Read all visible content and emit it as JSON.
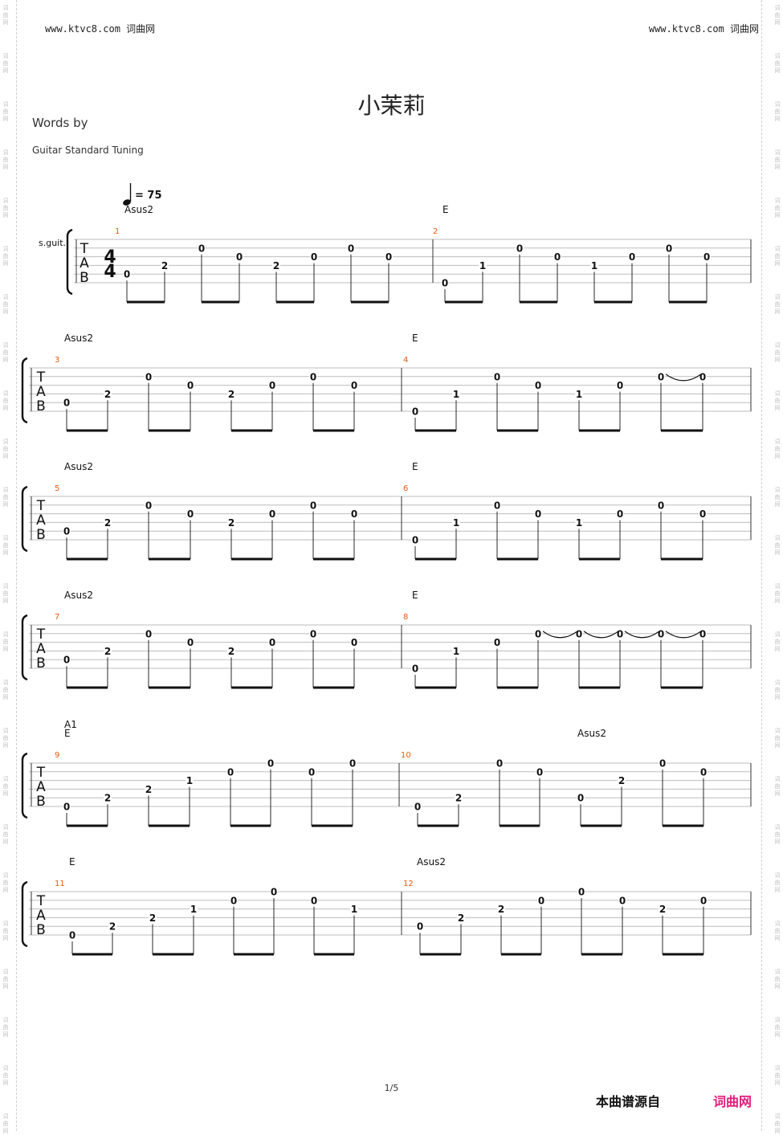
{
  "header": {
    "left": "www.ktvc8.com 词曲网",
    "right": "www.ktvc8.com 词曲网"
  },
  "watermark": {
    "chars": [
      "词",
      "曲",
      "网"
    ]
  },
  "title": "小茉莉",
  "words": "Words by",
  "tuning": "Guitar Standard Tuning",
  "tempo": {
    "icon": "quarter-note-icon",
    "text": "= 75"
  },
  "instrument": "s.guit.",
  "time_signature": {
    "top": "4",
    "bottom": "4"
  },
  "tab_letters": [
    "T",
    "A",
    "B"
  ],
  "section_label": "A1",
  "colors": {
    "measure_number": "#e8590c",
    "brand": "#e21d7a",
    "staff_line": "#bdbdbd"
  },
  "measures": [
    {
      "number": "1",
      "chords": [
        "Asus2"
      ],
      "notes": [
        [
          5,
          "0"
        ],
        [
          4,
          "2"
        ],
        [
          2,
          "0"
        ],
        [
          3,
          "0"
        ],
        [
          4,
          "2"
        ],
        [
          3,
          "0"
        ],
        [
          2,
          "0"
        ],
        [
          3,
          "0"
        ]
      ]
    },
    {
      "number": "2",
      "chords": [
        "E"
      ],
      "notes": [
        [
          6,
          "0"
        ],
        [
          4,
          "1"
        ],
        [
          2,
          "0"
        ],
        [
          3,
          "0"
        ],
        [
          4,
          "1"
        ],
        [
          3,
          "0"
        ],
        [
          2,
          "0"
        ],
        [
          3,
          "0"
        ]
      ]
    },
    {
      "number": "3",
      "chords": [
        "Asus2"
      ],
      "notes": [
        [
          5,
          "0"
        ],
        [
          4,
          "2"
        ],
        [
          2,
          "0"
        ],
        [
          3,
          "0"
        ],
        [
          4,
          "2"
        ],
        [
          3,
          "0"
        ],
        [
          2,
          "0"
        ],
        [
          3,
          "0"
        ]
      ]
    },
    {
      "number": "4",
      "chords": [
        "E"
      ],
      "notes": [
        [
          6,
          "0"
        ],
        [
          4,
          "1"
        ],
        [
          2,
          "0"
        ],
        [
          3,
          "0"
        ],
        [
          4,
          "1"
        ],
        [
          3,
          "0"
        ],
        [
          2,
          "0"
        ],
        [
          2,
          "0"
        ]
      ],
      "ties": [
        [
          6,
          7
        ]
      ]
    },
    {
      "number": "5",
      "chords": [
        "Asus2"
      ],
      "notes": [
        [
          5,
          "0"
        ],
        [
          4,
          "2"
        ],
        [
          2,
          "0"
        ],
        [
          3,
          "0"
        ],
        [
          4,
          "2"
        ],
        [
          3,
          "0"
        ],
        [
          2,
          "0"
        ],
        [
          3,
          "0"
        ]
      ]
    },
    {
      "number": "6",
      "chords": [
        "E"
      ],
      "notes": [
        [
          6,
          "0"
        ],
        [
          4,
          "1"
        ],
        [
          2,
          "0"
        ],
        [
          3,
          "0"
        ],
        [
          4,
          "1"
        ],
        [
          3,
          "0"
        ],
        [
          2,
          "0"
        ],
        [
          3,
          "0"
        ]
      ]
    },
    {
      "number": "7",
      "chords": [
        "Asus2"
      ],
      "notes": [
        [
          5,
          "0"
        ],
        [
          4,
          "2"
        ],
        [
          2,
          "0"
        ],
        [
          3,
          "0"
        ],
        [
          4,
          "2"
        ],
        [
          3,
          "0"
        ],
        [
          2,
          "0"
        ],
        [
          3,
          "0"
        ]
      ]
    },
    {
      "number": "8",
      "chords": [
        "E"
      ],
      "notes": [
        [
          6,
          "0"
        ],
        [
          4,
          "1"
        ],
        [
          3,
          "0"
        ],
        [
          2,
          "0"
        ],
        [
          2,
          "0"
        ],
        [
          2,
          "0"
        ],
        [
          2,
          "0"
        ],
        [
          2,
          "0"
        ]
      ],
      "ties": [
        [
          3,
          4
        ],
        [
          4,
          5
        ],
        [
          5,
          6
        ],
        [
          6,
          7
        ]
      ]
    },
    {
      "number": "9",
      "chords": [
        "E"
      ],
      "notes": [
        [
          6,
          "0"
        ],
        [
          5,
          "2"
        ],
        [
          4,
          "2"
        ],
        [
          3,
          "1"
        ],
        [
          2,
          "0"
        ],
        [
          1,
          "0"
        ],
        [
          2,
          "0"
        ],
        [
          1,
          "0"
        ]
      ]
    },
    {
      "number": "10",
      "chords": [
        "Asus2"
      ],
      "notes": [
        [
          6,
          "0"
        ],
        [
          5,
          "2"
        ],
        [
          1,
          "0"
        ],
        [
          2,
          "0"
        ],
        [
          5,
          "0"
        ],
        [
          3,
          "2"
        ],
        [
          1,
          "0"
        ],
        [
          2,
          "0"
        ]
      ]
    },
    {
      "number": "11",
      "chords": [
        "E"
      ],
      "notes": [
        [
          6,
          "0"
        ],
        [
          5,
          "2"
        ],
        [
          4,
          "2"
        ],
        [
          3,
          "1"
        ],
        [
          2,
          "0"
        ],
        [
          1,
          "0"
        ],
        [
          2,
          "0"
        ],
        [
          3,
          "1"
        ]
      ]
    },
    {
      "number": "12",
      "chords": [
        "Asus2"
      ],
      "notes": [
        [
          5,
          "0"
        ],
        [
          4,
          "2"
        ],
        [
          3,
          "2"
        ],
        [
          2,
          "0"
        ],
        [
          1,
          "0"
        ],
        [
          2,
          "0"
        ],
        [
          3,
          "2"
        ],
        [
          2,
          "0"
        ]
      ]
    }
  ],
  "page_number": "1/5",
  "footer": {
    "source_text": "本曲谱源自",
    "site": "词曲网"
  }
}
